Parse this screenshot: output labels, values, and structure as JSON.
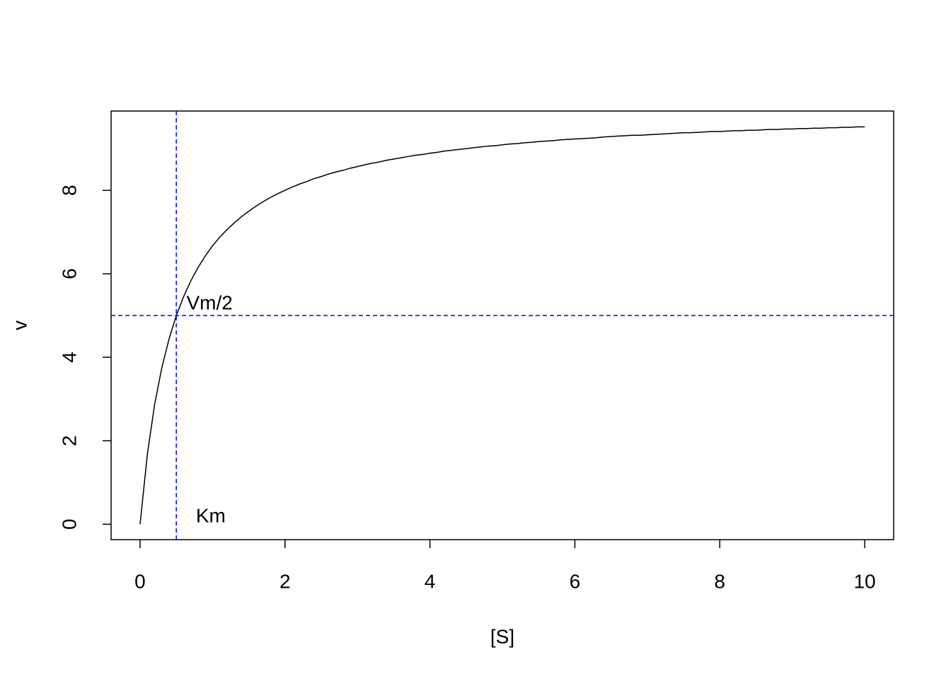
{
  "chart_data": {
    "type": "line",
    "xlabel": "[S]",
    "ylabel": "v",
    "x": [
      0,
      0.1,
      0.2,
      0.3,
      0.4,
      0.5,
      0.6,
      0.7,
      0.8,
      0.9,
      1,
      1.1,
      1.2,
      1.3,
      1.4,
      1.5,
      1.6,
      1.7,
      1.8,
      1.9,
      2,
      2.1,
      2.2,
      2.3,
      2.4,
      2.5,
      2.6,
      2.7,
      2.8,
      2.9,
      3,
      3.1,
      3.2,
      3.3,
      3.4,
      3.5,
      3.6,
      3.7,
      3.8,
      3.9,
      4,
      4.1,
      4.2,
      4.3,
      4.4,
      4.5,
      4.6,
      4.7,
      4.8,
      4.9,
      5,
      5.1,
      5.2,
      5.3,
      5.4,
      5.5,
      5.6,
      5.7,
      5.8,
      5.9,
      6,
      6.1,
      6.2,
      6.3,
      6.4,
      6.5,
      6.6,
      6.7,
      6.8,
      6.9,
      7,
      7.1,
      7.2,
      7.3,
      7.4,
      7.5,
      7.6,
      7.7,
      7.8,
      7.9,
      8,
      8.1,
      8.2,
      8.3,
      8.4,
      8.5,
      8.6,
      8.7,
      8.8,
      8.9,
      9,
      9.1,
      9.2,
      9.3,
      9.4,
      9.5,
      9.6,
      9.7,
      9.8,
      9.9,
      10
    ],
    "values": [
      0,
      1.67,
      2.86,
      3.75,
      4.44,
      5,
      5.45,
      5.83,
      6.15,
      6.43,
      6.67,
      6.88,
      7.06,
      7.22,
      7.37,
      7.5,
      7.62,
      7.73,
      7.83,
      7.92,
      8,
      8.08,
      8.15,
      8.21,
      8.28,
      8.33,
      8.39,
      8.44,
      8.48,
      8.53,
      8.57,
      8.61,
      8.65,
      8.68,
      8.72,
      8.75,
      8.78,
      8.81,
      8.84,
      8.86,
      8.89,
      8.91,
      8.94,
      8.96,
      8.98,
      9,
      9.02,
      9.04,
      9.06,
      9.07,
      9.09,
      9.11,
      9.12,
      9.14,
      9.15,
      9.17,
      9.18,
      9.19,
      9.21,
      9.22,
      9.23,
      9.24,
      9.25,
      9.26,
      9.28,
      9.29,
      9.3,
      9.31,
      9.32,
      9.32,
      9.33,
      9.34,
      9.35,
      9.36,
      9.37,
      9.38,
      9.38,
      9.39,
      9.4,
      9.41,
      9.41,
      9.42,
      9.43,
      9.43,
      9.44,
      9.44,
      9.45,
      9.46,
      9.46,
      9.47,
      9.47,
      9.48,
      9.48,
      9.49,
      9.49,
      9.5,
      9.5,
      9.51,
      9.51,
      9.52,
      9.52
    ],
    "color": "#000000",
    "xlim": [
      -0.4,
      10.4
    ],
    "xticks": [
      0,
      2,
      4,
      6,
      8,
      10
    ],
    "ylim": [
      -0.37,
      9.9
    ],
    "yticks": [
      0,
      2,
      4,
      6,
      8
    ],
    "reference_lines": {
      "color": "#0000ff",
      "h": 5,
      "v": 0.5
    },
    "annotations": [
      {
        "text": "Vm/2",
        "x": 0.64,
        "y": 5.27
      },
      {
        "text": "Km",
        "x": 0.77,
        "y": 0.17
      }
    ]
  }
}
